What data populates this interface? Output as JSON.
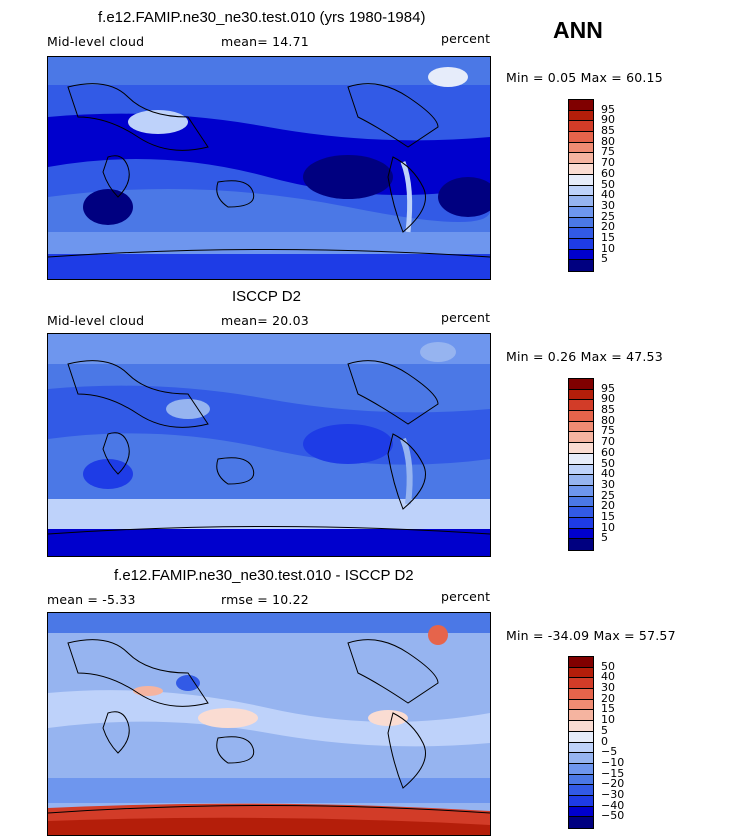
{
  "season": "ANN",
  "panels": [
    {
      "title": "f.e12.FAMIP.ne30_ne30.test.010 (yrs 1980-1984)",
      "left_label": "Mid-level cloud",
      "mid_label": "mean=  14.71",
      "units": "percent",
      "minmax": "Min =   0.05 Max =  60.15",
      "colorbar_labels": [
        "95",
        "90",
        "85",
        "80",
        "75",
        "70",
        "60",
        "50",
        "40",
        "30",
        "25",
        "20",
        "15",
        "10",
        "5"
      ]
    },
    {
      "title": "ISCCP D2",
      "left_label": "Mid-level cloud",
      "mid_label": "mean=  20.03",
      "units": "percent",
      "minmax": "Min =   0.26 Max =  47.53",
      "colorbar_labels": [
        "95",
        "90",
        "85",
        "80",
        "75",
        "70",
        "60",
        "50",
        "40",
        "30",
        "25",
        "20",
        "15",
        "10",
        "5"
      ]
    },
    {
      "title": "f.e12.FAMIP.ne30_ne30.test.010 - ISCCP D2",
      "left_label": "mean =  -5.33",
      "mid_label": "rmse =  10.22",
      "units": "percent",
      "minmax": "Min = -34.09 Max =  57.57",
      "colorbar_labels": [
        "50",
        "40",
        "30",
        "20",
        "15",
        "10",
        "5",
        "0",
        "−5",
        "−10",
        "−15",
        "−20",
        "−30",
        "−40",
        "−50"
      ]
    }
  ],
  "colors": {
    "field_scale": [
      "#000080",
      "#0000cd",
      "#1e3ce6",
      "#325ae6",
      "#4b78e6",
      "#6e96ee",
      "#96b4f0",
      "#bed2fa",
      "#e6ecfa",
      "#fadcd2",
      "#f5b4a0",
      "#f08c73",
      "#e6644b",
      "#d23c28",
      "#b41e0a",
      "#800000"
    ],
    "diff_scale": [
      "#000080",
      "#0000cd",
      "#1e3ce6",
      "#325ae6",
      "#4b78e6",
      "#6e96ee",
      "#96b4f0",
      "#bed2fa",
      "#e6ecfa",
      "#fadcd2",
      "#f5b4a0",
      "#f08c73",
      "#e6644b",
      "#d23c28",
      "#b41e0a",
      "#800000"
    ]
  },
  "chart_data": [
    {
      "type": "heatmap",
      "title": "f.e12.FAMIP.ne30_ne30.test.010 (yrs 1980-1984)",
      "variable": "Mid-level cloud",
      "units": "percent",
      "mean": 14.71,
      "min": 0.05,
      "max": 60.15,
      "contour_levels": [
        5,
        10,
        15,
        20,
        25,
        30,
        40,
        50,
        60,
        70,
        75,
        80,
        85,
        90,
        95
      ]
    },
    {
      "type": "heatmap",
      "title": "ISCCP D2",
      "variable": "Mid-level cloud",
      "units": "percent",
      "mean": 20.03,
      "min": 0.26,
      "max": 47.53,
      "contour_levels": [
        5,
        10,
        15,
        20,
        25,
        30,
        40,
        50,
        60,
        70,
        75,
        80,
        85,
        90,
        95
      ]
    },
    {
      "type": "heatmap",
      "title": "f.e12.FAMIP.ne30_ne30.test.010 - ISCCP D2",
      "units": "percent",
      "mean": -5.33,
      "rmse": 10.22,
      "min": -34.09,
      "max": 57.57,
      "contour_levels": [
        -50,
        -40,
        -30,
        -20,
        -15,
        -10,
        -5,
        0,
        5,
        10,
        15,
        20,
        30,
        40,
        50
      ]
    }
  ]
}
